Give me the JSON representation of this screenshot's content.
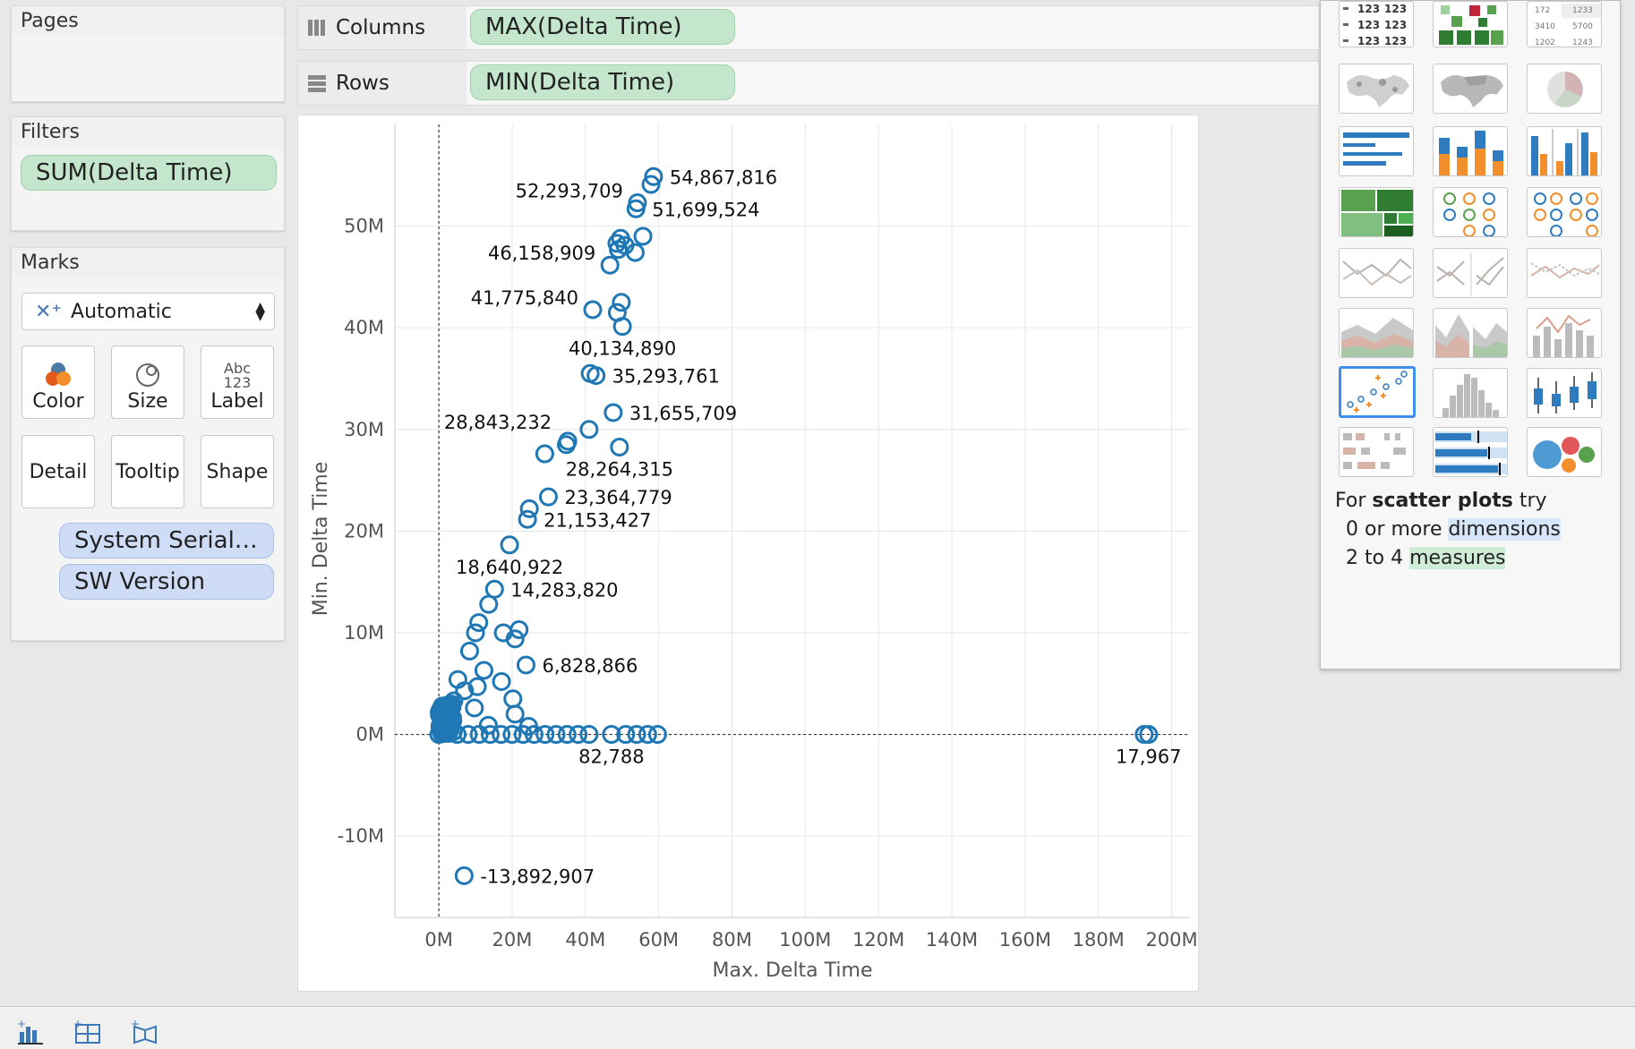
{
  "pages": {
    "title": "Pages"
  },
  "filters": {
    "title": "Filters",
    "items": [
      "SUM(Delta Time)"
    ]
  },
  "marks": {
    "title": "Marks",
    "mark_type": "Automatic",
    "buttons": [
      "Color",
      "Size",
      "Label",
      "Detail",
      "Tooltip",
      "Shape"
    ],
    "label_icon_top": "Abc",
    "label_icon_bottom": "123",
    "fields": [
      "System Serial N..",
      "SW Version"
    ]
  },
  "shelves": {
    "columns": {
      "label": "Columns",
      "pill": "MAX(Delta Time)"
    },
    "rows": {
      "label": "Rows",
      "pill": "MIN(Delta Time)"
    }
  },
  "chart_data": {
    "type": "scatter",
    "xlabel": "Max. Delta Time",
    "ylabel": "Min. Delta Time",
    "xlim": [
      -12000000,
      205000000
    ],
    "ylim": [
      -18000000,
      60000000
    ],
    "x_ticks": [
      "0M",
      "20M",
      "40M",
      "60M",
      "80M",
      "100M",
      "120M",
      "140M",
      "160M",
      "180M",
      "200M"
    ],
    "y_ticks": [
      "-10M",
      "0M",
      "10M",
      "20M",
      "30M",
      "40M",
      "50M"
    ],
    "colors": {
      "mark": "#1f77b4",
      "grid": "#e6e6e6",
      "label": "#111111"
    },
    "points": [
      {
        "x": 58600000,
        "y": 54867816,
        "label": "54,867,816"
      },
      {
        "x": 57900000,
        "y": 54100000
      },
      {
        "x": 54200000,
        "y": 52293709,
        "label": "52,293,709"
      },
      {
        "x": 53800000,
        "y": 51699524,
        "label": "51,699,524"
      },
      {
        "x": 55700000,
        "y": 49000000
      },
      {
        "x": 49600000,
        "y": 48800000
      },
      {
        "x": 48600000,
        "y": 48300000
      },
      {
        "x": 50800000,
        "y": 48100000
      },
      {
        "x": 49000000,
        "y": 47700000
      },
      {
        "x": 53600000,
        "y": 47400000
      },
      {
        "x": 46700000,
        "y": 46158909,
        "label": "46,158,909"
      },
      {
        "x": 49800000,
        "y": 42500000
      },
      {
        "x": 42000000,
        "y": 41775840,
        "label": "41,775,840"
      },
      {
        "x": 48700000,
        "y": 41500000
      },
      {
        "x": 50100000,
        "y": 40134890,
        "label": "40,134,890"
      },
      {
        "x": 41300000,
        "y": 35500000
      },
      {
        "x": 42900000,
        "y": 35293761,
        "label": "35,293,761"
      },
      {
        "x": 47600000,
        "y": 31655709,
        "label": "31,655,709"
      },
      {
        "x": 41000000,
        "y": 30000000
      },
      {
        "x": 35200000,
        "y": 28843232,
        "label": "28,843,232"
      },
      {
        "x": 34800000,
        "y": 28500000
      },
      {
        "x": 49300000,
        "y": 28264315,
        "label": "28,264,315"
      },
      {
        "x": 28900000,
        "y": 27600000
      },
      {
        "x": 29900000,
        "y": 23364779,
        "label": "23,364,779"
      },
      {
        "x": 24700000,
        "y": 22200000
      },
      {
        "x": 24200000,
        "y": 21153427,
        "label": "21,153,427"
      },
      {
        "x": 19300000,
        "y": 18640922,
        "label": "18,640,922"
      },
      {
        "x": 15200000,
        "y": 14283820,
        "label": "14,283,820"
      },
      {
        "x": 13600000,
        "y": 12800000
      },
      {
        "x": 10900000,
        "y": 11000000
      },
      {
        "x": 10000000,
        "y": 10000000
      },
      {
        "x": 17600000,
        "y": 10000000
      },
      {
        "x": 21900000,
        "y": 10300000
      },
      {
        "x": 20800000,
        "y": 9400000
      },
      {
        "x": 8400000,
        "y": 8200000
      },
      {
        "x": 23800000,
        "y": 6828866,
        "label": "6,828,866"
      },
      {
        "x": 12300000,
        "y": 6300000
      },
      {
        "x": 5200000,
        "y": 5400000
      },
      {
        "x": 17100000,
        "y": 5200000
      },
      {
        "x": 10500000,
        "y": 4700000
      },
      {
        "x": 7000000,
        "y": 4300000
      },
      {
        "x": 20200000,
        "y": 3500000
      },
      {
        "x": 4100000,
        "y": 3300000
      },
      {
        "x": 2900000,
        "y": 2800000
      },
      {
        "x": 9700000,
        "y": 2600000
      },
      {
        "x": 20800000,
        "y": 2000000
      },
      {
        "x": 1500000,
        "y": 1600000
      },
      {
        "x": 3200000,
        "y": 1200000
      },
      {
        "x": 13500000,
        "y": 900000
      },
      {
        "x": 24500000,
        "y": 800000
      },
      {
        "x": 600000,
        "y": 500000
      },
      {
        "x": 1800000,
        "y": 300000
      },
      {
        "x": 2600000,
        "y": 100000
      },
      {
        "x": 5000000,
        "y": 0
      },
      {
        "x": 8000000,
        "y": 0
      },
      {
        "x": 11000000,
        "y": 0
      },
      {
        "x": 14000000,
        "y": 0
      },
      {
        "x": 17000000,
        "y": 0
      },
      {
        "x": 20000000,
        "y": 0
      },
      {
        "x": 23000000,
        "y": 0
      },
      {
        "x": 26000000,
        "y": 0
      },
      {
        "x": 29000000,
        "y": 0
      },
      {
        "x": 32000000,
        "y": 0
      },
      {
        "x": 35000000,
        "y": 0
      },
      {
        "x": 38000000,
        "y": 0
      },
      {
        "x": 41000000,
        "y": 0
      },
      {
        "x": 47100000,
        "y": 0,
        "label": "82,788"
      },
      {
        "x": 51000000,
        "y": 0
      },
      {
        "x": 54000000,
        "y": 0
      },
      {
        "x": 57000000,
        "y": 0
      },
      {
        "x": 59700000,
        "y": 0
      },
      {
        "x": 192500000,
        "y": 0
      },
      {
        "x": 193700000,
        "y": 0,
        "label": "17,967"
      },
      {
        "x": 6900000,
        "y": -13892907,
        "label": "-13,892,907"
      }
    ]
  },
  "show_me": {
    "hint_line1_pre": "For ",
    "hint_line1_bold": "scatter plots",
    "hint_line1_post": " try",
    "hint_line2_pre": "0 or more ",
    "hint_line2_hl": "dimensions",
    "hint_line3_pre": "2 to 4 ",
    "hint_line3_hl": "measures",
    "thumb_text_table": "123",
    "thumb_text_hl": [
      "172",
      "1233",
      "3410",
      "5700",
      "1202",
      "1243"
    ],
    "selected": "scatter-plot",
    "colors": {
      "blue": "#2f7bbf",
      "orange": "#f28e2b",
      "green": "#59a14f",
      "red": "#e15759",
      "gray": "#bab0ac"
    }
  }
}
